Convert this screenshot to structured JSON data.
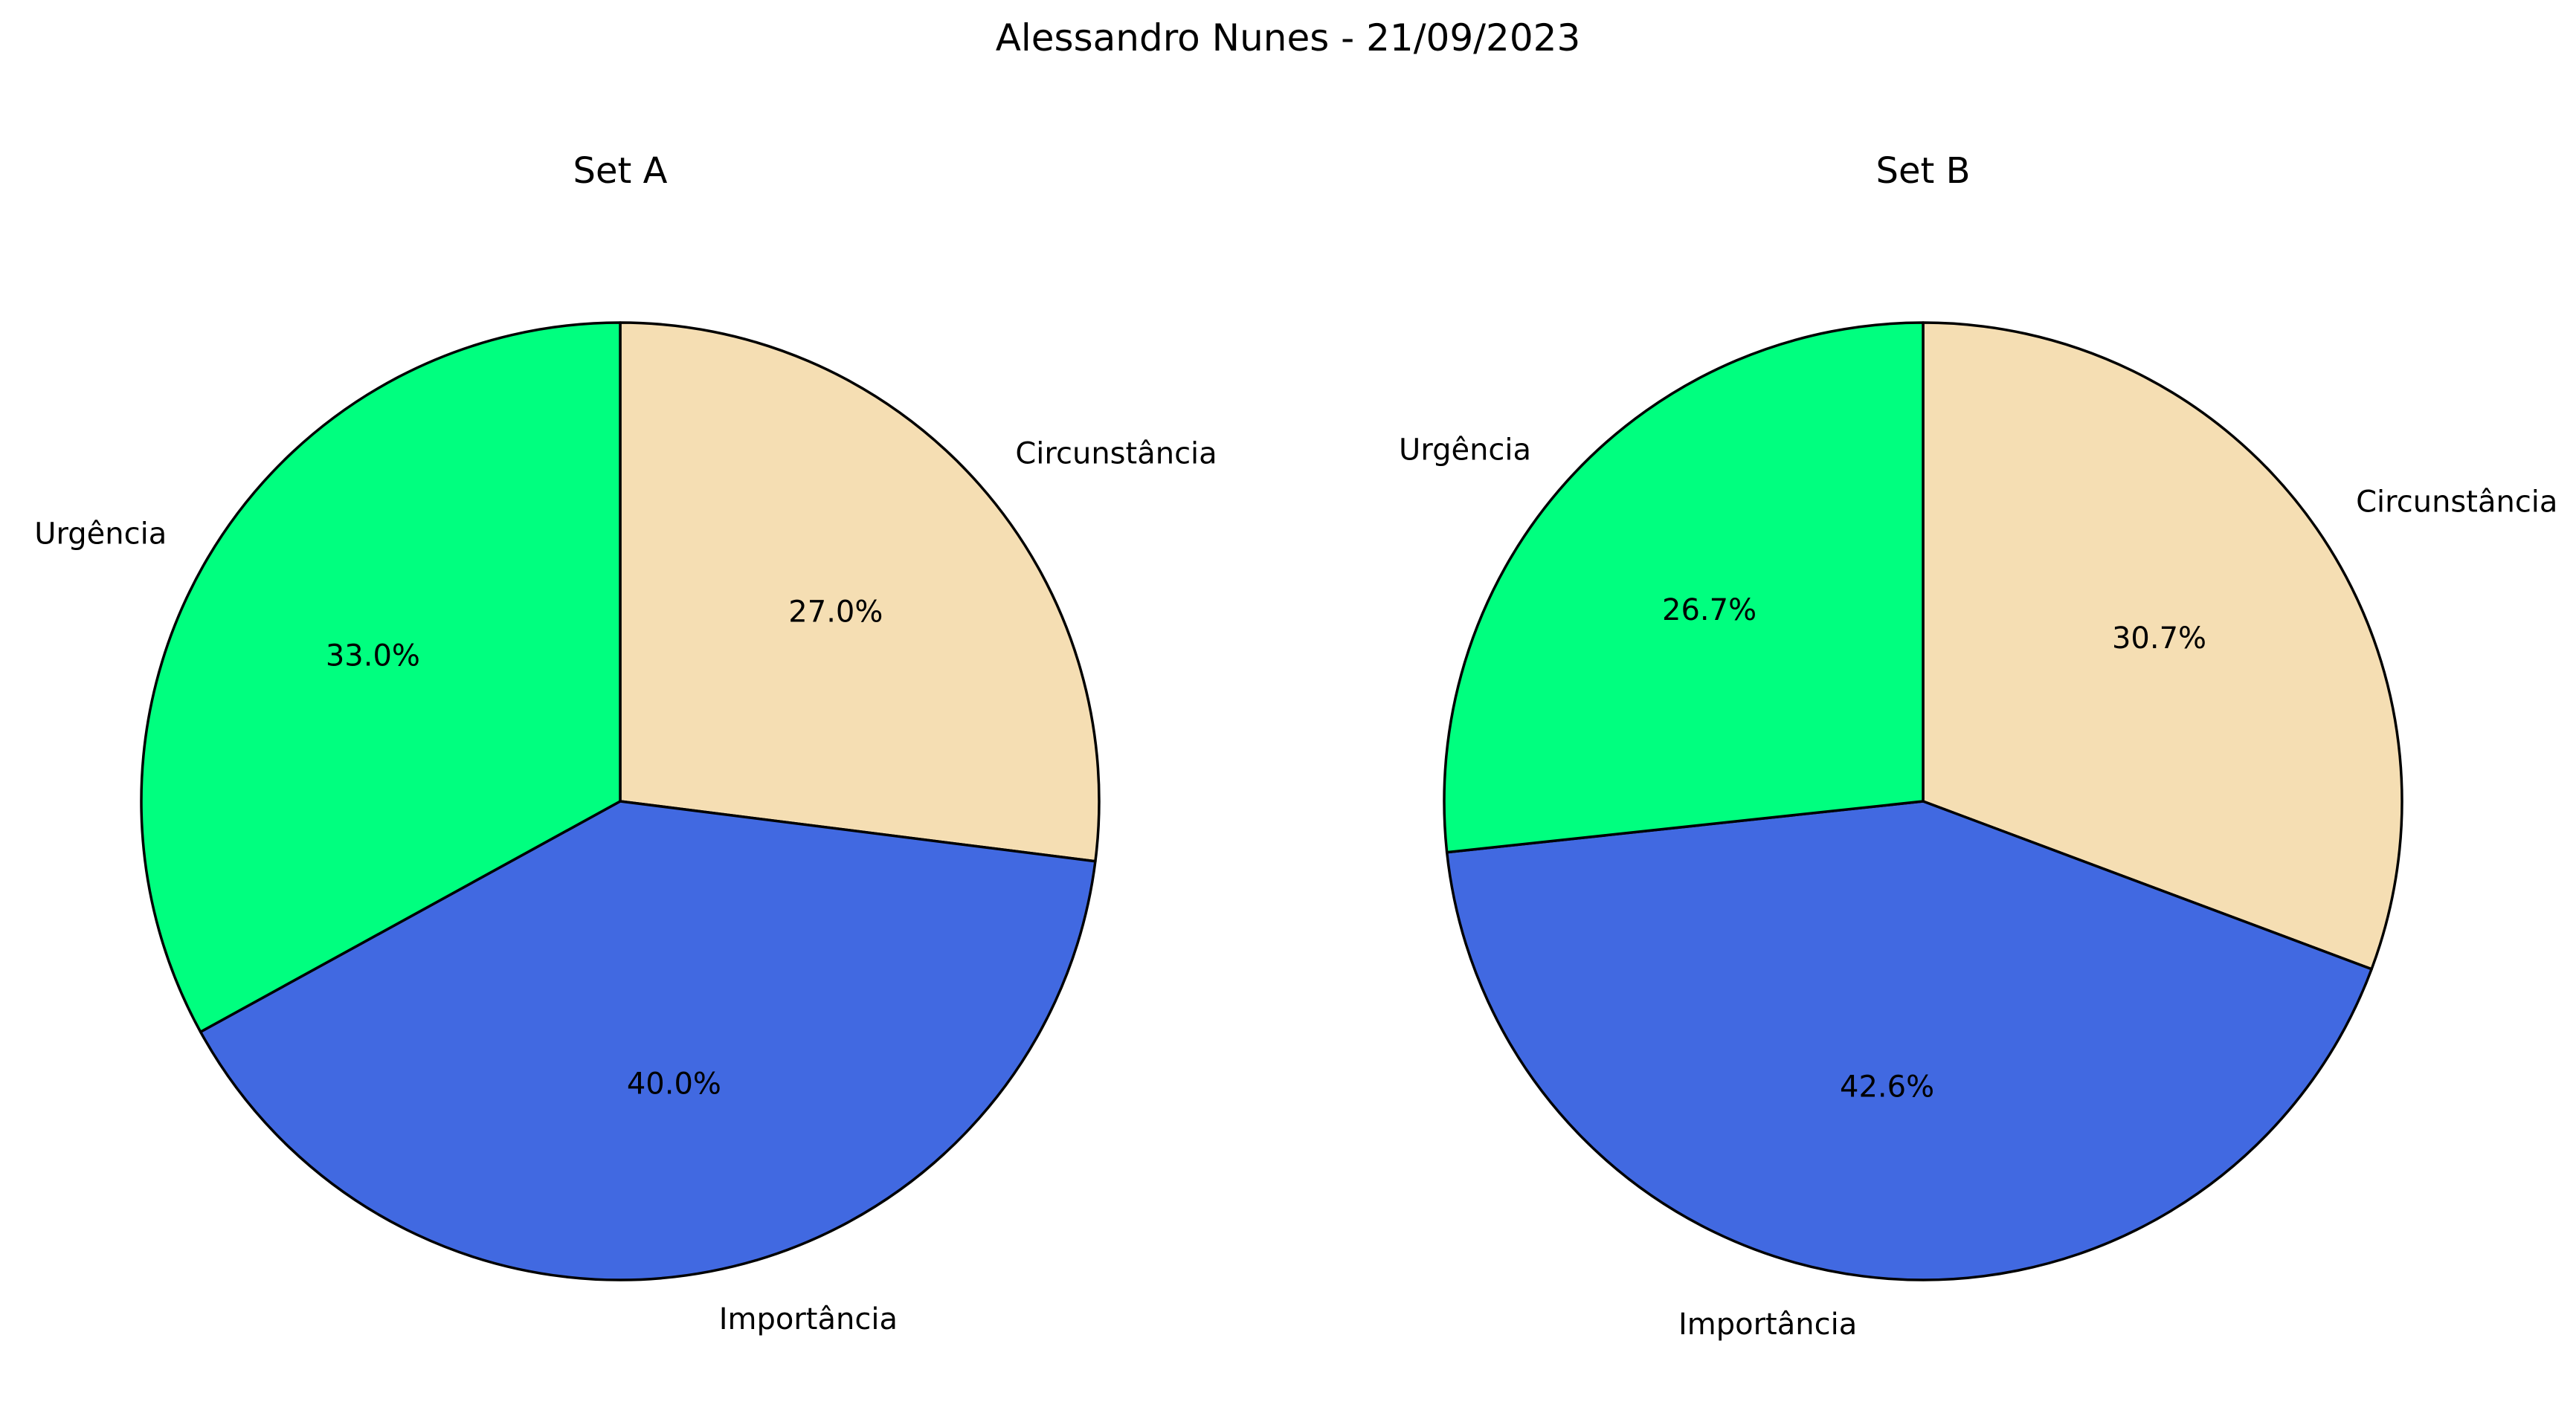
{
  "figure": {
    "title": "Alessandro Nunes - 21/09/2023"
  },
  "chart_data": [
    {
      "type": "pie",
      "title": "Set A",
      "start_angle_deg": 90,
      "direction": "clockwise",
      "slices": [
        {
          "label": "Circunstância",
          "value": 27.0,
          "pct_label": "27.0%",
          "color": "#F5DEB3"
        },
        {
          "label": "Importância",
          "value": 40.0,
          "pct_label": "40.0%",
          "color": "#4169E1"
        },
        {
          "label": "Urgência",
          "value": 33.0,
          "pct_label": "33.0%",
          "color": "#00FF7F"
        }
      ]
    },
    {
      "type": "pie",
      "title": "Set B",
      "start_angle_deg": 90,
      "direction": "clockwise",
      "slices": [
        {
          "label": "Circunstância",
          "value": 30.7,
          "pct_label": "30.7%",
          "color": "#F5DEB3"
        },
        {
          "label": "Importância",
          "value": 42.6,
          "pct_label": "42.6%",
          "color": "#4169E1"
        },
        {
          "label": "Urgência",
          "value": 26.7,
          "pct_label": "26.7%",
          "color": "#00FF7F"
        }
      ]
    }
  ]
}
